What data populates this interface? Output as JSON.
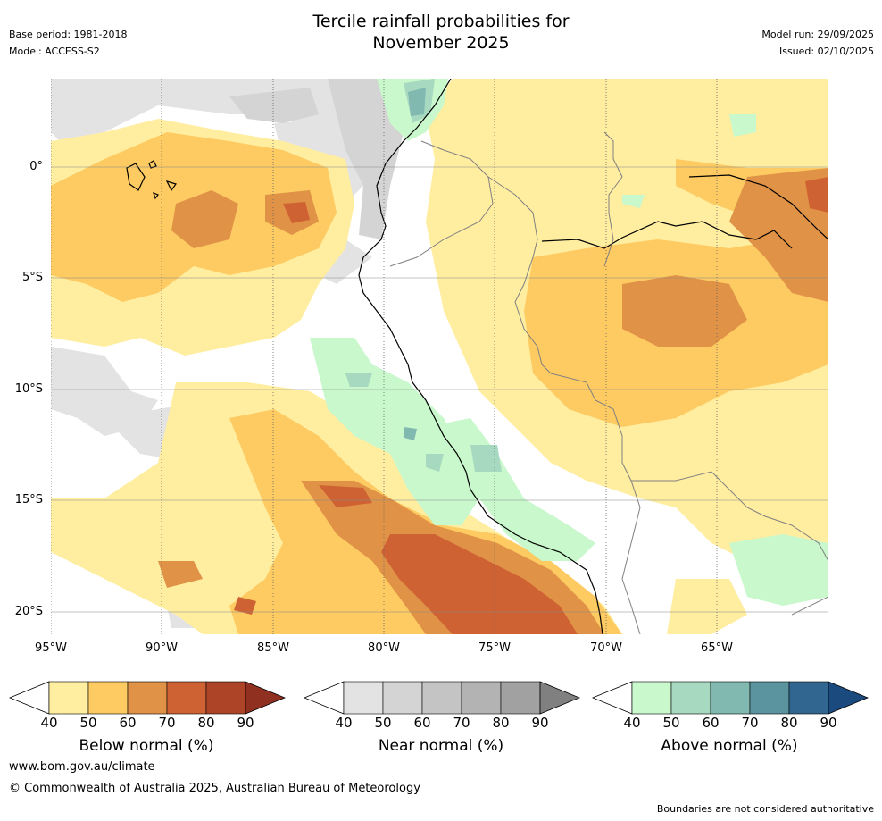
{
  "header": {
    "title_line1": "Tercile rainfall probabilities for",
    "title_line2": "November 2025",
    "base_period": "Base period: 1981-2018",
    "model": "Model: ACCESS-S2",
    "model_run": "Model run: 29/09/2025",
    "issued": "Issued: 02/10/2025"
  },
  "axes": {
    "lon_labels": [
      "95°W",
      "90°W",
      "85°W",
      "80°W",
      "75°W",
      "70°W",
      "65°W"
    ],
    "lat_labels": [
      "0°",
      "5°S",
      "10°S",
      "15°S",
      "20°S"
    ]
  },
  "legends": [
    {
      "label": "Below normal (%)",
      "ticks": [
        "40",
        "50",
        "60",
        "70",
        "80",
        "90"
      ],
      "colors": [
        "#ffeda0",
        "#fecb62",
        "#e09246",
        "#cf6233",
        "#ad4428"
      ],
      "extend_color": "#8f3020"
    },
    {
      "label": "Near normal (%)",
      "ticks": [
        "40",
        "50",
        "60",
        "70",
        "80",
        "90"
      ],
      "colors": [
        "#e3e3e3",
        "#d4d4d4",
        "#c4c4c4",
        "#b3b3b3",
        "#a1a1a1"
      ],
      "extend_color": "#808080"
    },
    {
      "label": "Above normal (%)",
      "ticks": [
        "40",
        "50",
        "60",
        "70",
        "80",
        "90"
      ],
      "colors": [
        "#c8f8cb",
        "#a6d9c0",
        "#81b9b1",
        "#5b949f",
        "#316690"
      ],
      "extend_color": "#1b4a7e"
    }
  ],
  "footer": {
    "url": "www.bom.gov.au/climate",
    "copyright": "© Commonwealth of Australia 2025, Australian Bureau of Meteorology",
    "disclaimer": "Boundaries are not considered authoritative"
  }
}
